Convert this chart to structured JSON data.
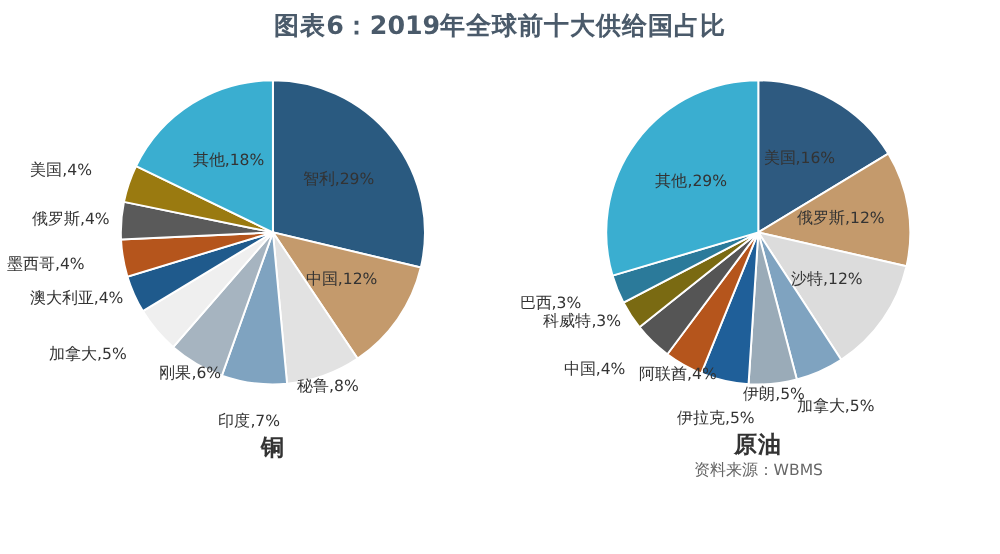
{
  "chart_data": [
    {
      "type": "pie",
      "title": "图表6：2019年全球前十大供给国占比",
      "xlabel": "铜",
      "legend": false,
      "data_labels": true,
      "categories": [
        "智利",
        "中国",
        "秘鲁",
        "印度",
        "刚果",
        "加拿大",
        "澳大利亚",
        "墨西哥",
        "俄罗斯",
        "美国",
        "其他"
      ],
      "values": [
        29,
        12,
        8,
        7,
        6,
        5,
        4,
        4,
        4,
        4,
        18
      ],
      "value_labels": [
        ",29%",
        ",12%",
        ",8%",
        ",7%",
        ",6%",
        ",5%",
        ",4%",
        ",4%",
        ",4%",
        ",4%",
        ",18%"
      ],
      "colors": [
        "#2a5a80",
        "#c49a6c",
        "#e2e2e2",
        "#7fa3c0",
        "#a6b4c0",
        "#efefef",
        "#1f5a8c",
        "#b5551c",
        "#5a5a5a",
        "#9a7a10",
        "#3aaed0"
      ]
    },
    {
      "type": "pie",
      "xlabel": "原油",
      "legend": false,
      "data_labels": true,
      "annotations": [
        "资料来源：WBMS"
      ],
      "categories": [
        "美国",
        "俄罗斯",
        "沙特",
        "加拿大",
        "伊朗",
        "伊拉克",
        "阿联酋",
        "中国",
        "科威特",
        "巴西",
        "其他"
      ],
      "values": [
        16,
        12,
        12,
        5,
        5,
        5,
        4,
        4,
        3,
        3,
        29
      ],
      "value_labels": [
        ",16%",
        ",12%",
        ",12%",
        ",5%",
        ",5%",
        ",5%",
        ",4%",
        ",4%",
        ",3%",
        ",3%",
        ",29%"
      ],
      "colors": [
        "#2e5a80",
        "#c49a6c",
        "#dcdcdc",
        "#7fa3c0",
        "#9aabb8",
        "#1f5f99",
        "#b5551c",
        "#555555",
        "#7a6a12",
        "#2b7a9a",
        "#3aaed0"
      ]
    }
  ]
}
